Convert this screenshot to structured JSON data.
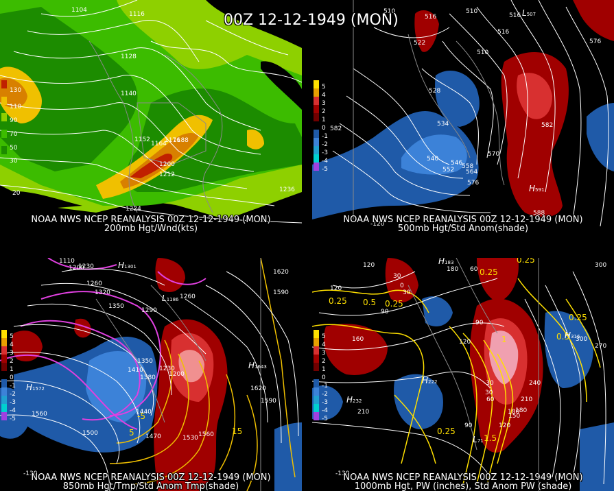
{
  "title": "00Z 12-12-1949 (MON)",
  "colors": {
    "wind_green_light": "#8ed000",
    "wind_green": "#3cbc00",
    "wind_green_dark": "#1c8c00",
    "wind_yellow": "#f0c000",
    "wind_orange": "#d88000",
    "wind_red": "#c02000",
    "anom_blue_dark": "#1f5aa8",
    "anom_blue": "#3c82d8",
    "anom_red_dark": "#a00000",
    "anom_red": "#d83030",
    "contour": "#ffffff",
    "temp_magenta": "#e040e0",
    "temp_yellow": "#f0c000",
    "pw_yellow": "#ffe000"
  },
  "panels": [
    {
      "id": "200mb",
      "caption_line1": "NOAA NWS NCEP REANALYSIS 00Z 12-12-1949 (MON)",
      "caption_line2": "200mb Hgt/Wnd(kts)",
      "legend": [
        "130",
        "110",
        "90",
        "70",
        "50",
        "30"
      ],
      "contour_labels": [
        "1104",
        "1116",
        "1128",
        "1140",
        "1152",
        "1164",
        "1176",
        "1188",
        "1200",
        "1212",
        "1224",
        "1236"
      ],
      "axis_labels": [
        "20"
      ]
    },
    {
      "id": "500mb",
      "caption_line1": "NOAA NWS NCEP REANALYSIS 00Z 12-12-1949 (MON)",
      "caption_line2": "500mb Hgt/Std Anom(shade)",
      "legend": [
        "5",
        "4",
        "3",
        "2",
        "1",
        "0",
        "-1",
        "-2",
        "-3",
        "-4",
        "-5"
      ],
      "contour_labels": [
        "510",
        "516",
        "516",
        "510",
        "516",
        "522",
        "510",
        "528",
        "534",
        "540",
        "546",
        "552",
        "558",
        "564",
        "570",
        "576",
        "582",
        "582",
        "588",
        "576"
      ],
      "pressure_centers": [
        {
          "letter": "H",
          "value": "591"
        },
        {
          "letter": "L",
          "value": "507"
        }
      ],
      "axis_labels": [
        "-120"
      ]
    },
    {
      "id": "850mb",
      "caption_line1": "NOAA NWS NCEP REANALYSIS 00Z 12-12-1949 (MON)",
      "caption_line2": "850mb Hgt/Tmp/Std Anom Tmp(shade)",
      "legend": [
        "5",
        "4",
        "3",
        "2",
        "1",
        "0",
        "-1",
        "-2",
        "-3",
        "-4",
        "-5"
      ],
      "contour_labels": [
        "1110",
        "1200",
        "1230",
        "1260",
        "1320",
        "1350",
        "1290",
        "1260",
        "1620",
        "1590",
        "1350",
        "1410",
        "1380",
        "1230",
        "1200",
        "1620",
        "1590",
        "1560",
        "1500",
        "1440",
        "1470",
        "1530",
        "1560"
      ],
      "temp_labels": [
        "-5",
        "5",
        "15"
      ],
      "pressure_centers": [
        {
          "letter": "H",
          "value": "1572"
        },
        {
          "letter": "H",
          "value": "1643"
        },
        {
          "letter": "H",
          "value": "1301"
        },
        {
          "letter": "L",
          "value": "1186"
        }
      ],
      "axis_labels": [
        "-130"
      ]
    },
    {
      "id": "1000mb",
      "caption_line1": "NOAA NWS NCEP REANALYSIS 00Z 12-12-1949 (MON)",
      "caption_line2": "1000mb Hgt, PW (inches), Std Anom PW (shade)",
      "legend": [
        "5",
        "4",
        "3",
        "2",
        "1",
        "0",
        "-1",
        "-2",
        "-3",
        "-4",
        "-5"
      ],
      "contour_labels": [
        "120",
        "180",
        "60",
        "30",
        "0",
        "30",
        "90",
        "120",
        "160",
        "90",
        "120",
        "210",
        "180",
        "240",
        "210",
        "180",
        "150",
        "120",
        "90",
        "60",
        "30",
        "300",
        "270",
        "300",
        "-30"
      ],
      "pw_labels": [
        "0.25",
        "0.5",
        "0.25",
        "0.25",
        "0.25",
        "0.25",
        "0.5",
        "1",
        "1.5",
        "0.25"
      ],
      "pressure_centers": [
        {
          "letter": "H",
          "value": "222"
        },
        {
          "letter": "H",
          "value": "232"
        },
        {
          "letter": "H",
          "value": "183"
        },
        {
          "letter": "H",
          "value": "316"
        },
        {
          "letter": "L",
          "value": "71"
        }
      ],
      "axis_labels": [
        "-130"
      ]
    }
  ]
}
